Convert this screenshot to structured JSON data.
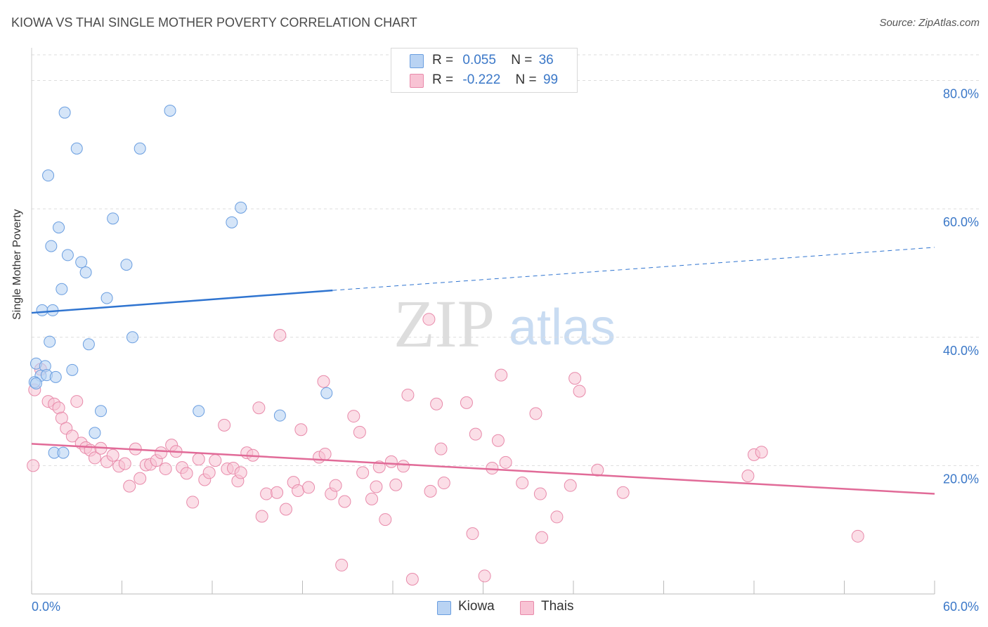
{
  "title": "KIOWA VS THAI SINGLE MOTHER POVERTY CORRELATION CHART",
  "source": "Source: ZipAtlas.com",
  "watermark": {
    "zip": "ZIP",
    "atlas": "atlas"
  },
  "legend_stats": [
    {
      "r_label": "R =",
      "r_value": "0.055",
      "n_label": "N =",
      "n_value": "36"
    },
    {
      "r_label": "R =",
      "r_value": "-0.222",
      "n_label": "N =",
      "n_value": "99"
    }
  ],
  "colors": {
    "kiowa_fill": "#b9d3f3",
    "kiowa_stroke": "#6a9ee0",
    "kiowa_line": "#2f74d0",
    "thai_fill": "#f8c3d4",
    "thai_stroke": "#e88aaa",
    "thai_line": "#e16b98",
    "tick_label": "#3b78c8",
    "grid": "#dddddd"
  },
  "chart_data": {
    "type": "scatter",
    "title": "KIOWA VS THAI SINGLE MOTHER POVERTY CORRELATION CHART",
    "xlabel": "",
    "ylabel": "Single Mother Poverty",
    "xlim": [
      0,
      60
    ],
    "ylim": [
      0,
      84
    ],
    "x_tick_labels": [
      "0.0%",
      "60.0%"
    ],
    "y_ticks": [
      20,
      40,
      60,
      80
    ],
    "y_tick_labels": [
      "20.0%",
      "40.0%",
      "60.0%",
      "80.0%"
    ],
    "grid": true,
    "legend": [
      "Kiowa",
      "Thais"
    ],
    "legend_position": "bottom",
    "series": [
      {
        "name": "Kiowa",
        "r": 0.055,
        "n": 36,
        "trend": {
          "x": [
            0,
            20
          ],
          "y": [
            43.8,
            47.3
          ],
          "dashed_to": [
            60,
            54.0
          ]
        },
        "points": [
          [
            2.2,
            75.0
          ],
          [
            9.2,
            75.3
          ],
          [
            3.0,
            69.4
          ],
          [
            7.2,
            69.4
          ],
          [
            1.1,
            65.2
          ],
          [
            13.9,
            60.2
          ],
          [
            13.3,
            57.9
          ],
          [
            5.4,
            58.5
          ],
          [
            1.8,
            57.1
          ],
          [
            1.3,
            54.2
          ],
          [
            2.4,
            52.8
          ],
          [
            3.3,
            51.7
          ],
          [
            3.6,
            50.1
          ],
          [
            6.3,
            51.3
          ],
          [
            2.0,
            47.5
          ],
          [
            5.0,
            46.1
          ],
          [
            0.7,
            44.2
          ],
          [
            1.4,
            44.2
          ],
          [
            6.7,
            40.0
          ],
          [
            1.2,
            39.3
          ],
          [
            3.8,
            38.9
          ],
          [
            0.3,
            35.9
          ],
          [
            0.9,
            35.5
          ],
          [
            2.7,
            34.9
          ],
          [
            0.6,
            34.0
          ],
          [
            1.0,
            34.1
          ],
          [
            1.6,
            33.8
          ],
          [
            0.2,
            33.0
          ],
          [
            0.3,
            32.8
          ],
          [
            19.6,
            31.3
          ],
          [
            4.6,
            28.5
          ],
          [
            11.1,
            28.5
          ],
          [
            16.5,
            27.8
          ],
          [
            4.2,
            25.1
          ],
          [
            1.5,
            22.0
          ],
          [
            2.1,
            22.0
          ]
        ]
      },
      {
        "name": "Thais",
        "r": -0.222,
        "n": 99,
        "trend": {
          "x": [
            0,
            60
          ],
          "y": [
            23.4,
            15.6
          ]
        },
        "points": [
          [
            0.2,
            31.8
          ],
          [
            0.6,
            35.0
          ],
          [
            1.1,
            30.0
          ],
          [
            1.5,
            29.6
          ],
          [
            1.8,
            29.0
          ],
          [
            2.0,
            27.4
          ],
          [
            2.3,
            25.8
          ],
          [
            2.7,
            24.6
          ],
          [
            3.0,
            30.0
          ],
          [
            3.3,
            23.5
          ],
          [
            3.6,
            22.8
          ],
          [
            3.9,
            22.4
          ],
          [
            4.2,
            21.2
          ],
          [
            4.6,
            22.7
          ],
          [
            5.0,
            20.6
          ],
          [
            5.4,
            21.6
          ],
          [
            5.8,
            19.9
          ],
          [
            6.2,
            20.3
          ],
          [
            6.5,
            16.8
          ],
          [
            6.9,
            22.6
          ],
          [
            7.2,
            18.0
          ],
          [
            7.6,
            20.1
          ],
          [
            7.9,
            20.2
          ],
          [
            8.3,
            20.8
          ],
          [
            8.6,
            22.0
          ],
          [
            8.9,
            19.5
          ],
          [
            9.3,
            23.2
          ],
          [
            9.6,
            22.2
          ],
          [
            10.0,
            19.7
          ],
          [
            10.3,
            18.8
          ],
          [
            10.7,
            14.3
          ],
          [
            11.1,
            21.0
          ],
          [
            11.5,
            17.8
          ],
          [
            11.8,
            18.9
          ],
          [
            12.2,
            20.8
          ],
          [
            12.8,
            26.3
          ],
          [
            13.0,
            19.5
          ],
          [
            13.4,
            19.6
          ],
          [
            13.7,
            17.6
          ],
          [
            13.9,
            18.9
          ],
          [
            14.3,
            22.0
          ],
          [
            14.7,
            21.6
          ],
          [
            15.1,
            29.0
          ],
          [
            15.3,
            12.1
          ],
          [
            15.6,
            15.6
          ],
          [
            16.3,
            15.8
          ],
          [
            16.5,
            40.3
          ],
          [
            16.9,
            13.2
          ],
          [
            17.4,
            17.4
          ],
          [
            17.7,
            16.1
          ],
          [
            17.9,
            25.6
          ],
          [
            18.4,
            16.6
          ],
          [
            19.1,
            21.3
          ],
          [
            19.5,
            21.8
          ],
          [
            19.4,
            33.1
          ],
          [
            19.9,
            15.6
          ],
          [
            20.2,
            16.9
          ],
          [
            20.6,
            4.5
          ],
          [
            20.8,
            14.4
          ],
          [
            21.4,
            27.7
          ],
          [
            21.8,
            25.2
          ],
          [
            22.0,
            18.9
          ],
          [
            22.6,
            14.8
          ],
          [
            22.9,
            16.7
          ],
          [
            23.1,
            19.8
          ],
          [
            23.5,
            11.6
          ],
          [
            23.9,
            20.6
          ],
          [
            24.2,
            17.0
          ],
          [
            24.7,
            19.9
          ],
          [
            25.0,
            31.0
          ],
          [
            25.3,
            2.3
          ],
          [
            26.4,
            42.8
          ],
          [
            26.9,
            29.6
          ],
          [
            26.5,
            16.0
          ],
          [
            27.2,
            22.6
          ],
          [
            27.4,
            17.3
          ],
          [
            28.9,
            29.8
          ],
          [
            29.3,
            9.4
          ],
          [
            29.5,
            24.9
          ],
          [
            30.1,
            2.8
          ],
          [
            30.6,
            19.6
          ],
          [
            31.0,
            23.9
          ],
          [
            31.5,
            20.5
          ],
          [
            31.2,
            34.1
          ],
          [
            32.6,
            17.3
          ],
          [
            33.5,
            28.1
          ],
          [
            33.8,
            15.6
          ],
          [
            33.9,
            8.8
          ],
          [
            34.9,
            12.0
          ],
          [
            35.8,
            16.9
          ],
          [
            36.1,
            33.6
          ],
          [
            36.4,
            31.6
          ],
          [
            37.6,
            19.3
          ],
          [
            39.3,
            15.8
          ],
          [
            48.0,
            21.7
          ],
          [
            48.5,
            22.1
          ],
          [
            47.6,
            18.4
          ],
          [
            54.9,
            9.0
          ],
          [
            0.1,
            20.0
          ]
        ]
      }
    ]
  }
}
